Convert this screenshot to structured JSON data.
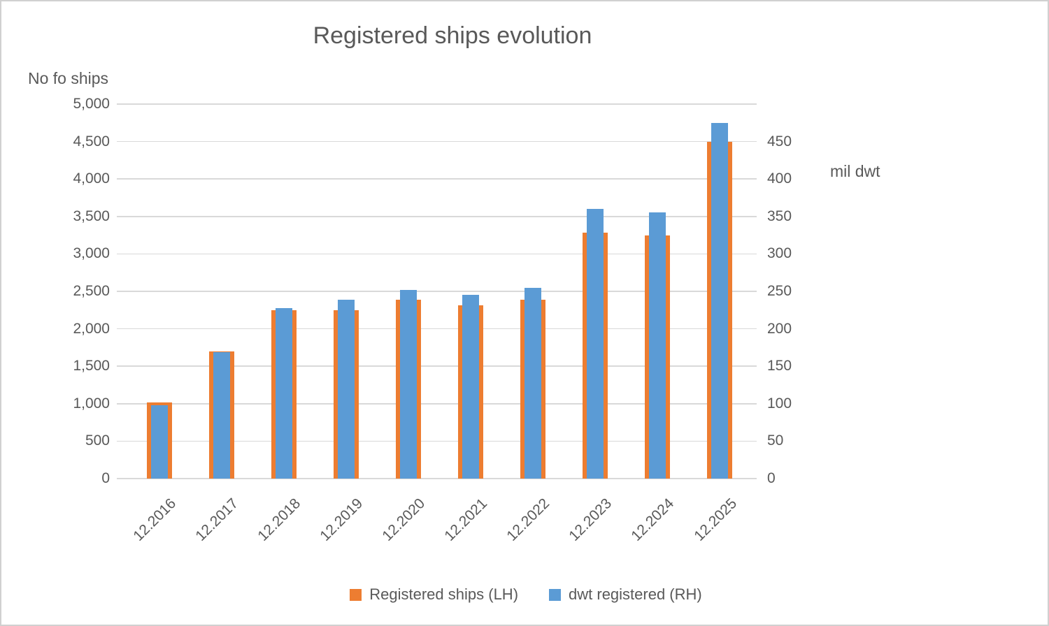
{
  "chart_data": {
    "type": "bar",
    "title": "Registered ships evolution",
    "categories": [
      "12.2016",
      "12.2017",
      "12.2018",
      "12.2019",
      "12.2020",
      "12.2021",
      "12.2022",
      "12.2023",
      "12.2024",
      "12.2025"
    ],
    "series": [
      {
        "name": "Registered ships (LH)",
        "axis": "left",
        "color": "#ed7d31",
        "values": [
          1020,
          1700,
          2250,
          2250,
          2390,
          2310,
          2390,
          3280,
          3250,
          4500
        ]
      },
      {
        "name": "dwt registered (RH)",
        "axis": "right",
        "color": "#5b9bd5",
        "values": [
          88,
          152,
          205,
          215,
          227,
          221,
          229,
          324,
          320,
          427
        ]
      }
    ],
    "left_axis": {
      "title": "No fo ships",
      "min": 0,
      "max": 5000,
      "step": 500,
      "tick_labels": [
        "0",
        "500",
        "1,000",
        "1,500",
        "2,000",
        "2,500",
        "3,000",
        "3,500",
        "4,000",
        "4,500",
        "5,000"
      ]
    },
    "right_axis": {
      "title": "mil dwt",
      "min": 0,
      "max": 450,
      "step": 50,
      "tick_labels": [
        "0",
        "50",
        "100",
        "150",
        "200",
        "250",
        "300",
        "350",
        "400",
        "450"
      ]
    },
    "grid": true,
    "legend_position": "bottom",
    "colors": {
      "text": "#595959",
      "gridline": "#d9d9d9",
      "background": "#ffffff"
    }
  }
}
